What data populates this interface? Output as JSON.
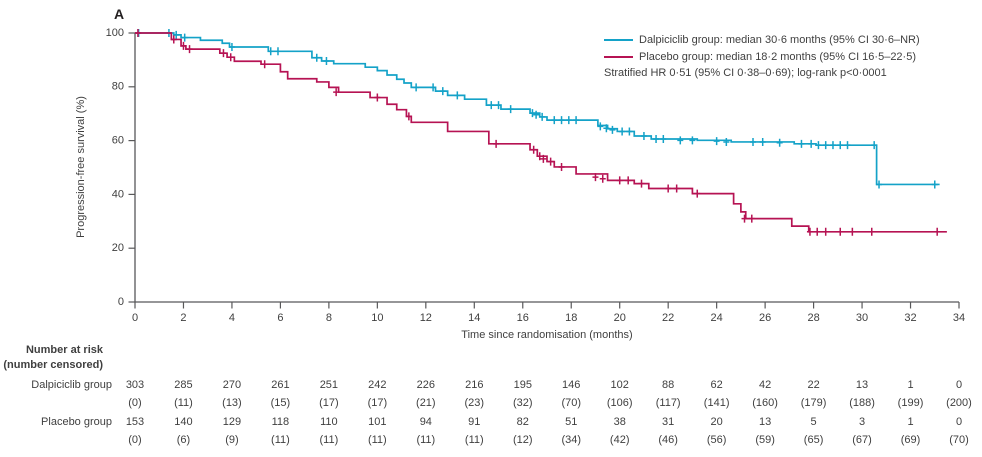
{
  "panel_label": "A",
  "colors": {
    "dalpiciclib": "#14a2c8",
    "placebo": "#b61353",
    "axis": "#58585a",
    "text": "#3f3f3f"
  },
  "legend": {
    "entries": [
      {
        "label": "Dalpiciclib group: median 30·6 months (95% CI 30·6–NR)",
        "color": "#14a2c8"
      },
      {
        "label": "Placebo group: median 18·2 months (95% CI 16·5–22·5)",
        "color": "#b61353"
      }
    ],
    "note": "Stratified HR 0·51 (95% CI 0·38–0·69); log-rank p<0·0001"
  },
  "chart_data": {
    "type": "line",
    "subtype": "kaplan-meier-step",
    "title": "",
    "xlabel": "Time since randomisation (months)",
    "ylabel": "Progression-free survival (%)",
    "xlim": [
      0,
      34
    ],
    "ylim": [
      0,
      100
    ],
    "xticks": [
      0,
      2,
      4,
      6,
      8,
      10,
      12,
      14,
      16,
      18,
      20,
      22,
      24,
      26,
      28,
      30,
      32,
      34
    ],
    "yticks": [
      0,
      20,
      40,
      60,
      80,
      100
    ],
    "grid": false,
    "legend_position": "top-right",
    "series": [
      {
        "name": "Dalpiciclib group",
        "color": "#14a2c8",
        "median_months": "30·6",
        "ci": "30·6–NR",
        "steps": [
          [
            0,
            100
          ],
          [
            1.6,
            99.3
          ],
          [
            1.9,
            98.3
          ],
          [
            2.7,
            97.3
          ],
          [
            3.6,
            96.2
          ],
          [
            3.9,
            94.8
          ],
          [
            5.5,
            93.2
          ],
          [
            7.3,
            90.8
          ],
          [
            7.7,
            89.6
          ],
          [
            8.2,
            88.6
          ],
          [
            9.5,
            87.3
          ],
          [
            10.0,
            86.0
          ],
          [
            10.4,
            84.4
          ],
          [
            10.8,
            82.8
          ],
          [
            11.1,
            81.4
          ],
          [
            11.4,
            79.8
          ],
          [
            12.4,
            78.4
          ],
          [
            12.9,
            76.8
          ],
          [
            13.6,
            75.4
          ],
          [
            14.5,
            73.2
          ],
          [
            15.1,
            71.7
          ],
          [
            16.3,
            70.2
          ],
          [
            16.7,
            68.8
          ],
          [
            17.0,
            67.6
          ],
          [
            19.1,
            65.6
          ],
          [
            19.5,
            64.4
          ],
          [
            19.9,
            63.4
          ],
          [
            20.6,
            61.7
          ],
          [
            21.3,
            60.6
          ],
          [
            23.2,
            60.1
          ],
          [
            24.6,
            59.5
          ],
          [
            27.2,
            58.8
          ],
          [
            28.1,
            58.3
          ],
          [
            30.6,
            43.7
          ],
          [
            33.2,
            43.7
          ]
        ],
        "censors": [
          [
            0.15,
            100
          ],
          [
            1.4,
            100
          ],
          [
            1.7,
            99.3
          ],
          [
            2.05,
            98.3
          ],
          [
            4.0,
            94.8
          ],
          [
            5.6,
            93.2
          ],
          [
            5.9,
            93.2
          ],
          [
            7.5,
            90.8
          ],
          [
            7.9,
            89.6
          ],
          [
            11.6,
            79.8
          ],
          [
            12.3,
            79.8
          ],
          [
            12.7,
            78.4
          ],
          [
            13.3,
            76.8
          ],
          [
            14.7,
            73.2
          ],
          [
            15.0,
            73.2
          ],
          [
            15.5,
            71.7
          ],
          [
            16.4,
            70.2
          ],
          [
            16.55,
            69.6
          ],
          [
            16.8,
            68.8
          ],
          [
            17.3,
            67.6
          ],
          [
            17.6,
            67.6
          ],
          [
            17.9,
            67.6
          ],
          [
            18.2,
            67.6
          ],
          [
            19.2,
            65.3
          ],
          [
            19.45,
            64.6
          ],
          [
            19.7,
            64.0
          ],
          [
            20.1,
            63.4
          ],
          [
            20.4,
            63.4
          ],
          [
            21.0,
            61.7
          ],
          [
            21.5,
            60.6
          ],
          [
            21.8,
            60.6
          ],
          [
            22.5,
            60.1
          ],
          [
            23.0,
            60.1
          ],
          [
            24.0,
            59.8
          ],
          [
            24.4,
            59.5
          ],
          [
            25.5,
            59.5
          ],
          [
            25.9,
            59.5
          ],
          [
            26.6,
            59.2
          ],
          [
            27.5,
            58.8
          ],
          [
            27.9,
            58.8
          ],
          [
            28.2,
            58.3
          ],
          [
            28.5,
            58.3
          ],
          [
            28.8,
            58.3
          ],
          [
            29.1,
            58.3
          ],
          [
            29.4,
            58.3
          ],
          [
            30.5,
            58.3
          ],
          [
            30.7,
            43.7
          ],
          [
            33.0,
            43.7
          ]
        ]
      },
      {
        "name": "Placebo group",
        "color": "#b61353",
        "median_months": "18·2",
        "ci": "16·5–22·5",
        "steps": [
          [
            0,
            100
          ],
          [
            1.5,
            97.6
          ],
          [
            1.9,
            95.2
          ],
          [
            2.1,
            94.0
          ],
          [
            3.5,
            92.5
          ],
          [
            3.8,
            91.0
          ],
          [
            4.1,
            89.5
          ],
          [
            5.2,
            88.4
          ],
          [
            6.0,
            85.6
          ],
          [
            6.3,
            83.0
          ],
          [
            7.5,
            81.8
          ],
          [
            8.0,
            79.8
          ],
          [
            8.4,
            78.0
          ],
          [
            9.7,
            76.0
          ],
          [
            10.4,
            73.5
          ],
          [
            10.8,
            71.5
          ],
          [
            11.2,
            69.0
          ],
          [
            11.4,
            66.8
          ],
          [
            12.9,
            63.4
          ],
          [
            14.6,
            58.8
          ],
          [
            16.3,
            56.6
          ],
          [
            16.6,
            54.2
          ],
          [
            17.0,
            52.2
          ],
          [
            17.3,
            50.2
          ],
          [
            18.2,
            47.6
          ],
          [
            19.5,
            45.2
          ],
          [
            20.6,
            44.0
          ],
          [
            21.2,
            42.2
          ],
          [
            23.0,
            40.3
          ],
          [
            24.7,
            36.5
          ],
          [
            25.0,
            33.5
          ],
          [
            25.2,
            31.0
          ],
          [
            27.1,
            28.2
          ],
          [
            27.8,
            26.1
          ],
          [
            33.5,
            26.1
          ]
        ],
        "censors": [
          [
            0.12,
            100
          ],
          [
            1.6,
            97.6
          ],
          [
            2.0,
            95.2
          ],
          [
            2.25,
            94.0
          ],
          [
            3.65,
            92.5
          ],
          [
            3.95,
            91.0
          ],
          [
            5.35,
            88.4
          ],
          [
            8.3,
            78.0
          ],
          [
            10.0,
            76.0
          ],
          [
            11.3,
            69.0
          ],
          [
            14.9,
            58.8
          ],
          [
            16.45,
            56.6
          ],
          [
            16.7,
            54.2
          ],
          [
            16.85,
            53.2
          ],
          [
            17.15,
            52.2
          ],
          [
            17.6,
            50.2
          ],
          [
            19.0,
            46.4
          ],
          [
            19.3,
            45.8
          ],
          [
            20.0,
            45.2
          ],
          [
            20.35,
            45.2
          ],
          [
            20.9,
            44.0
          ],
          [
            22.0,
            42.2
          ],
          [
            22.35,
            42.2
          ],
          [
            23.2,
            40.3
          ],
          [
            25.15,
            31.0
          ],
          [
            25.45,
            31.0
          ],
          [
            27.85,
            26.1
          ],
          [
            28.15,
            26.1
          ],
          [
            28.5,
            26.1
          ],
          [
            29.1,
            26.1
          ],
          [
            29.6,
            26.1
          ],
          [
            30.4,
            26.1
          ],
          [
            33.1,
            26.1
          ]
        ]
      }
    ]
  },
  "risk_table": {
    "header_line1": "Number at risk",
    "header_line2": "(number censored)",
    "timepoints": [
      0,
      2,
      4,
      6,
      8,
      10,
      12,
      14,
      16,
      18,
      20,
      22,
      24,
      26,
      28,
      30,
      32,
      34
    ],
    "rows": [
      {
        "label": "Dalpiciclib group",
        "at_risk": [
          303,
          285,
          270,
          261,
          251,
          242,
          226,
          216,
          195,
          146,
          102,
          88,
          62,
          42,
          22,
          13,
          1,
          0
        ],
        "censored": [
          "(0)",
          "(11)",
          "(13)",
          "(15)",
          "(17)",
          "(17)",
          "(21)",
          "(23)",
          "(32)",
          "(70)",
          "(106)",
          "(117)",
          "(141)",
          "(160)",
          "(179)",
          "(188)",
          "(199)",
          "(200)"
        ]
      },
      {
        "label": "Placebo group",
        "at_risk": [
          153,
          140,
          129,
          118,
          110,
          101,
          94,
          91,
          82,
          51,
          38,
          31,
          20,
          13,
          5,
          3,
          1,
          0
        ],
        "censored": [
          "(0)",
          "(6)",
          "(9)",
          "(11)",
          "(11)",
          "(11)",
          "(11)",
          "(11)",
          "(12)",
          "(34)",
          "(42)",
          "(46)",
          "(56)",
          "(59)",
          "(65)",
          "(67)",
          "(69)",
          "(70)"
        ]
      }
    ]
  }
}
